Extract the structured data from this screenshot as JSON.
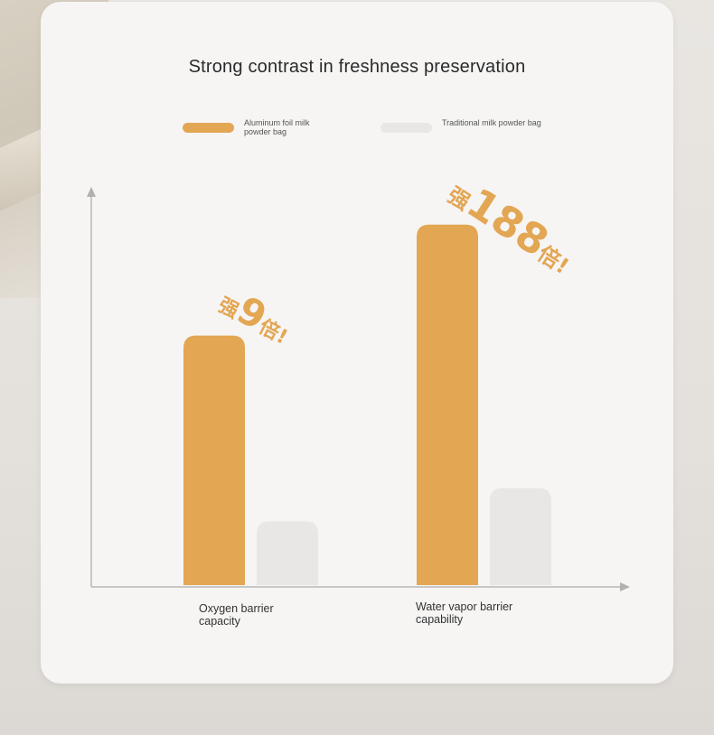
{
  "chart_data": {
    "type": "bar",
    "title": "Strong contrast in freshness preservation",
    "categories": [
      "Oxygen barrier capacity",
      "Water vapor barrier capability"
    ],
    "series": [
      {
        "name": "Aluminum foil milk powder bag",
        "color": "#e3a653",
        "values": [
          9,
          13
        ]
      },
      {
        "name": "Traditional milk powder bag",
        "color": "#e8e7e6",
        "values": [
          2.3,
          3.5
        ]
      }
    ],
    "annotations": [
      {
        "prefix": "强",
        "number": "9",
        "suffix": "倍!"
      },
      {
        "prefix": "强",
        "number": "188",
        "suffix": "倍!"
      }
    ],
    "ylim": [
      0,
      14
    ],
    "grid": false,
    "legend": "top"
  }
}
